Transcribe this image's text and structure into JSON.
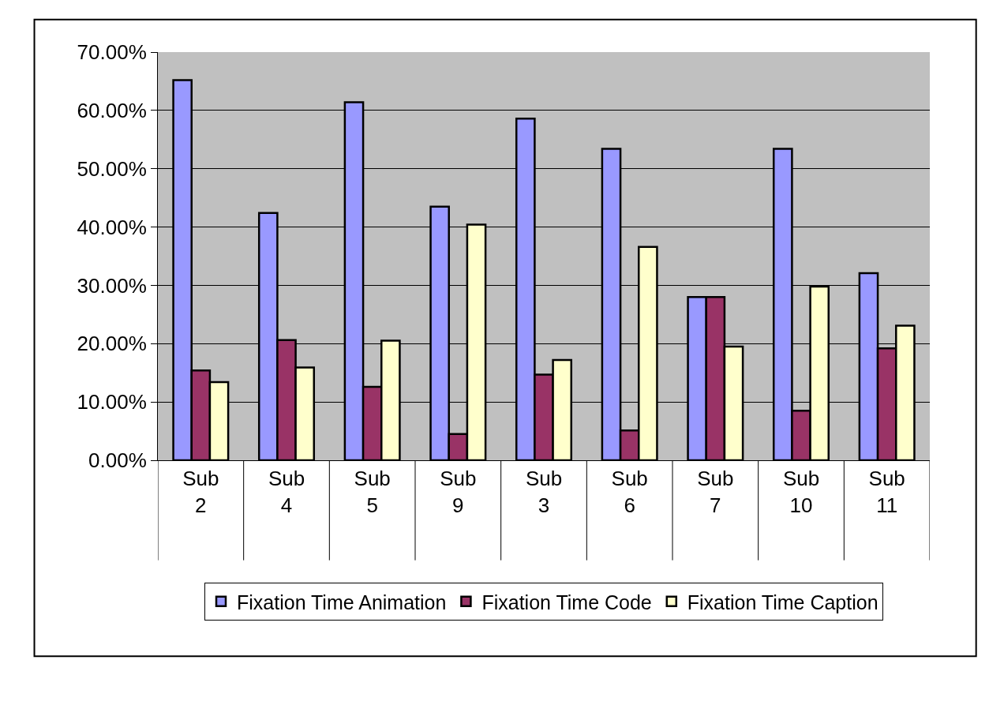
{
  "chart_data": {
    "type": "bar",
    "categories": [
      "Sub 2",
      "Sub 4",
      "Sub 5",
      "Sub 9",
      "Sub 3",
      "Sub 6",
      "Sub 7",
      "Sub 10",
      "Sub 11"
    ],
    "series": [
      {
        "name": "Fixation Time Animation",
        "color": "#9999ff",
        "values": [
          65.2,
          42.4,
          61.4,
          43.5,
          58.6,
          53.4,
          28.0,
          53.4,
          32.1
        ]
      },
      {
        "name": "Fixation Time Code",
        "color": "#993366",
        "values": [
          15.4,
          20.6,
          12.6,
          4.5,
          14.7,
          5.1,
          28.0,
          8.5,
          19.2
        ]
      },
      {
        "name": "Fixation Time Caption",
        "color": "#ffffcc",
        "values": [
          13.4,
          15.9,
          20.5,
          40.4,
          17.2,
          36.6,
          19.5,
          29.8,
          23.1
        ]
      }
    ],
    "ylim": [
      0,
      70
    ],
    "yticks": [
      {
        "value": 0,
        "label": "0.00%"
      },
      {
        "value": 10,
        "label": "10.00%"
      },
      {
        "value": 20,
        "label": "20.00%"
      },
      {
        "value": 30,
        "label": "30.00%"
      },
      {
        "value": 40,
        "label": "40.00%"
      },
      {
        "value": 50,
        "label": "50.00%"
      },
      {
        "value": 60,
        "label": "60.00%"
      },
      {
        "value": 70,
        "label": "70.00%"
      }
    ],
    "grid": "y",
    "legend": "bottom"
  }
}
